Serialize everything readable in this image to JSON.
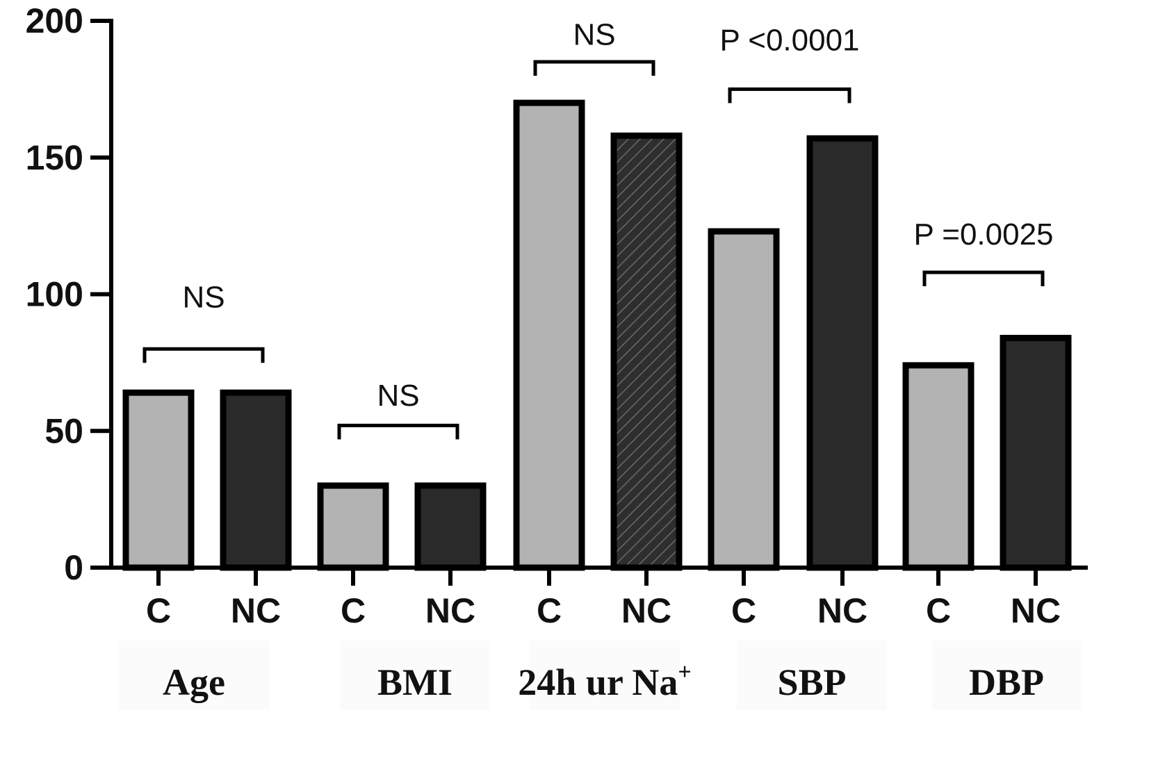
{
  "chart_data": {
    "type": "bar",
    "ylim": [
      0,
      200
    ],
    "yticks": [
      0,
      50,
      100,
      150,
      200
    ],
    "grid": false,
    "legend": "none",
    "groups": [
      {
        "label": "Age",
        "label_sup": "",
        "bars": [
          {
            "category": "C",
            "value": 64,
            "fill": "gray"
          },
          {
            "category": "NC",
            "value": 64,
            "fill": "black"
          }
        ],
        "significance": "NS",
        "bracket_y": 80,
        "text_y": 99
      },
      {
        "label": "BMI",
        "label_sup": "",
        "bars": [
          {
            "category": "C",
            "value": 30,
            "fill": "gray"
          },
          {
            "category": "NC",
            "value": 30,
            "fill": "black"
          }
        ],
        "significance": "NS",
        "bracket_y": 52,
        "text_y": 63
      },
      {
        "label": "24h ur Na",
        "label_sup": "+",
        "bars": [
          {
            "category": "C",
            "value": 170,
            "fill": "gray"
          },
          {
            "category": "NC",
            "value": 158,
            "fill": "hatched"
          }
        ],
        "significance": "NS",
        "bracket_y": 185,
        "text_y": 195
      },
      {
        "label": "SBP",
        "label_sup": "",
        "bars": [
          {
            "category": "C",
            "value": 123,
            "fill": "gray"
          },
          {
            "category": "NC",
            "value": 157,
            "fill": "black"
          }
        ],
        "significance": "P <0.0001",
        "bracket_y": 175,
        "text_y": 193
      },
      {
        "label": "DBP",
        "label_sup": "",
        "bars": [
          {
            "category": "C",
            "value": 74,
            "fill": "gray"
          },
          {
            "category": "NC",
            "value": 84,
            "fill": "black"
          }
        ],
        "significance": "P =0.0025",
        "bracket_y": 108,
        "text_y": 122
      }
    ],
    "colors": {
      "gray": "#b3b3b3",
      "black": "#2a2a2a",
      "outline": "#000000"
    }
  }
}
